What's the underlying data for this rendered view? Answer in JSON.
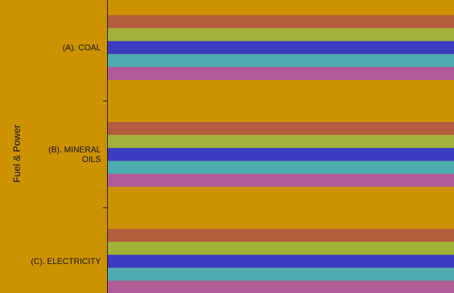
{
  "chart_data": {
    "type": "bar",
    "orientation": "horizontal",
    "title": "",
    "ylabel": "Fuel & Power",
    "xlabel": "",
    "categories": [
      {
        "lines": [
          "(A). COAL"
        ]
      },
      {
        "lines": [
          "(B). MINERAL",
          "OILS"
        ]
      },
      {
        "lines": [
          "(C). ELECTRICITY"
        ]
      }
    ],
    "series": [
      {
        "color": "#b35c3e",
        "values": [
          1,
          1,
          1
        ]
      },
      {
        "color": "#a3b03a",
        "values": [
          1,
          1,
          1
        ]
      },
      {
        "color": "#3b3cbf",
        "values": [
          1,
          1,
          1
        ]
      },
      {
        "color": "#4eabb0",
        "values": [
          1,
          1,
          1
        ]
      },
      {
        "color": "#b05a98",
        "values": [
          1,
          1,
          1
        ]
      }
    ],
    "xlim": [
      0,
      1
    ],
    "grid": false,
    "legend": "none",
    "colors": {
      "background": "#cc9200",
      "axis": "#111111",
      "text": "#111111"
    }
  }
}
